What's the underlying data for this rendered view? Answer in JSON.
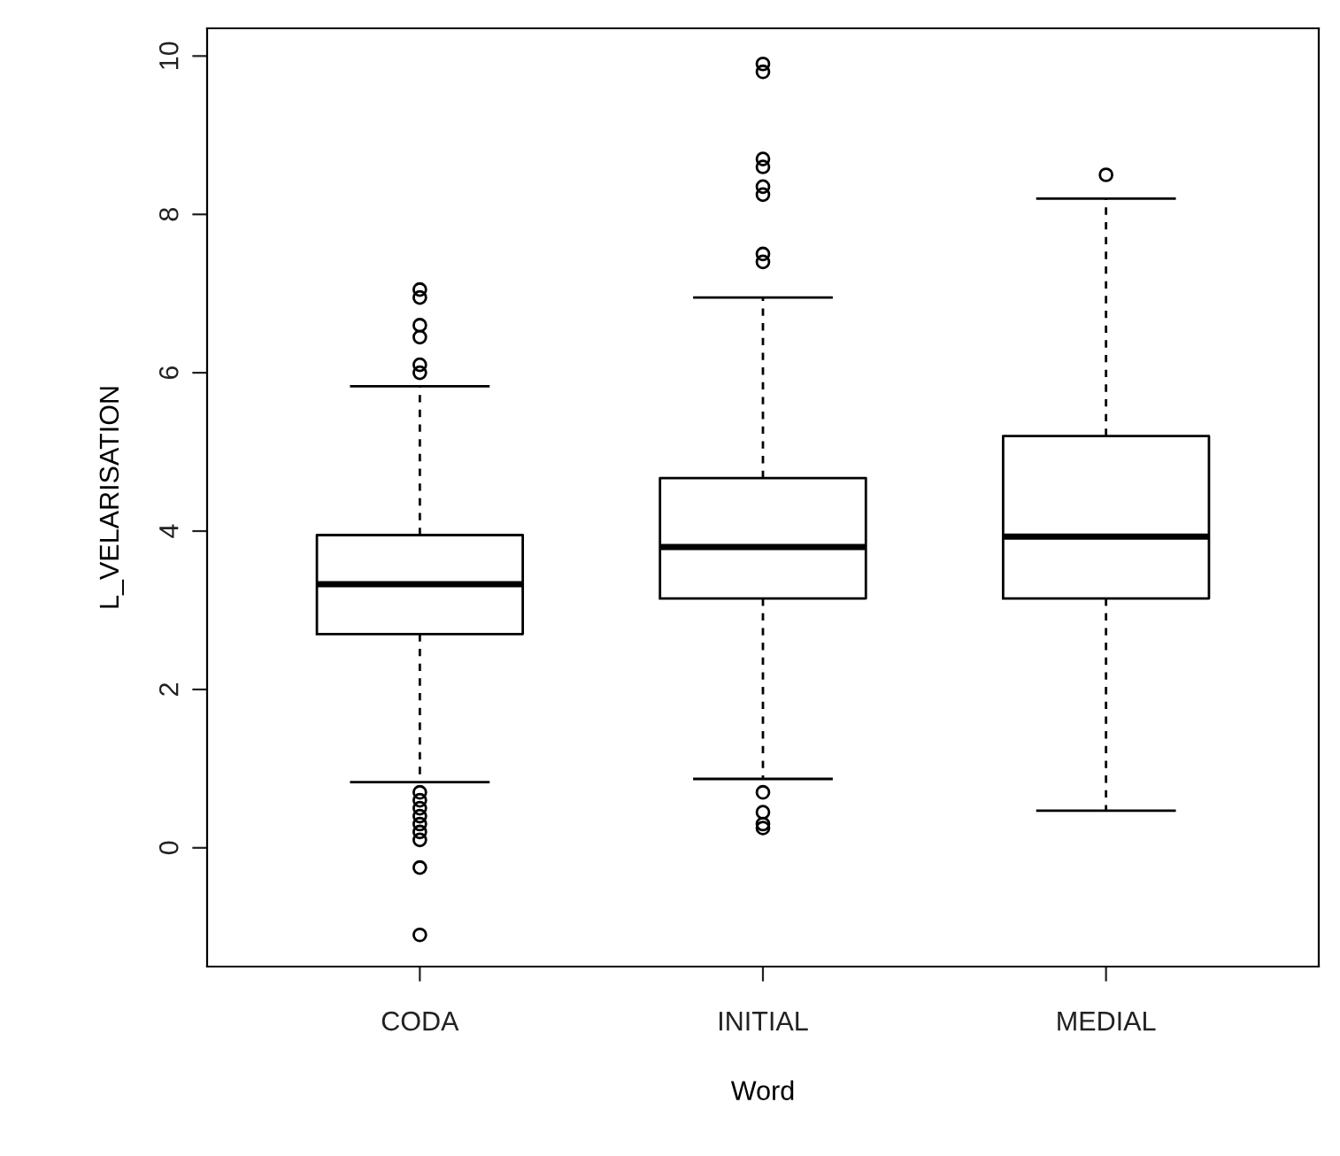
{
  "chart_data": {
    "type": "box",
    "xlabel": "Word",
    "ylabel": "L_VELARISATION",
    "categories": [
      "CODA",
      "INITIAL",
      "MEDIAL"
    ],
    "ylim": [
      -1.5,
      10.35
    ],
    "yticks": [
      0,
      2,
      4,
      6,
      8,
      10
    ],
    "grid": false,
    "marker": "circle",
    "boxes": [
      {
        "low": 0.83,
        "q1": 2.7,
        "median": 3.33,
        "q3": 3.95,
        "high": 5.83,
        "outliers": [
          7.05,
          6.95,
          6.6,
          6.45,
          6.1,
          6.0,
          0.7,
          0.6,
          0.5,
          0.4,
          0.3,
          0.2,
          0.1,
          -0.25,
          -1.1
        ]
      },
      {
        "low": 0.87,
        "q1": 3.15,
        "median": 3.8,
        "q3": 4.67,
        "high": 6.95,
        "outliers": [
          9.9,
          9.8,
          8.7,
          8.6,
          8.35,
          8.25,
          7.5,
          7.4,
          0.7,
          0.45,
          0.3,
          0.25
        ]
      },
      {
        "low": 0.47,
        "q1": 3.15,
        "median": 3.93,
        "q3": 5.2,
        "high": 8.2,
        "outliers": [
          8.5
        ]
      }
    ]
  }
}
